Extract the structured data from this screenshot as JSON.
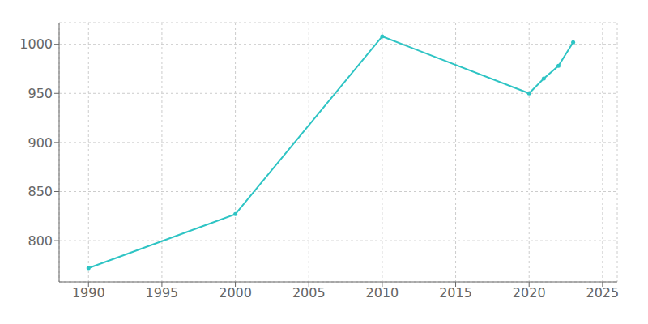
{
  "chart_data": {
    "type": "line",
    "x": [
      1990,
      2000,
      2010,
      2020,
      2021,
      2022,
      2023
    ],
    "values": [
      772,
      827,
      1008,
      950,
      965,
      978,
      1002
    ],
    "color": "#2EC4C4",
    "marker": "o",
    "xlim": [
      1988,
      2026
    ],
    "ylim": [
      758,
      1022
    ],
    "xticks": [
      1990,
      1995,
      2000,
      2005,
      2010,
      2015,
      2020,
      2025
    ],
    "yticks": [
      800,
      850,
      900,
      950,
      1000
    ],
    "grid": true
  }
}
